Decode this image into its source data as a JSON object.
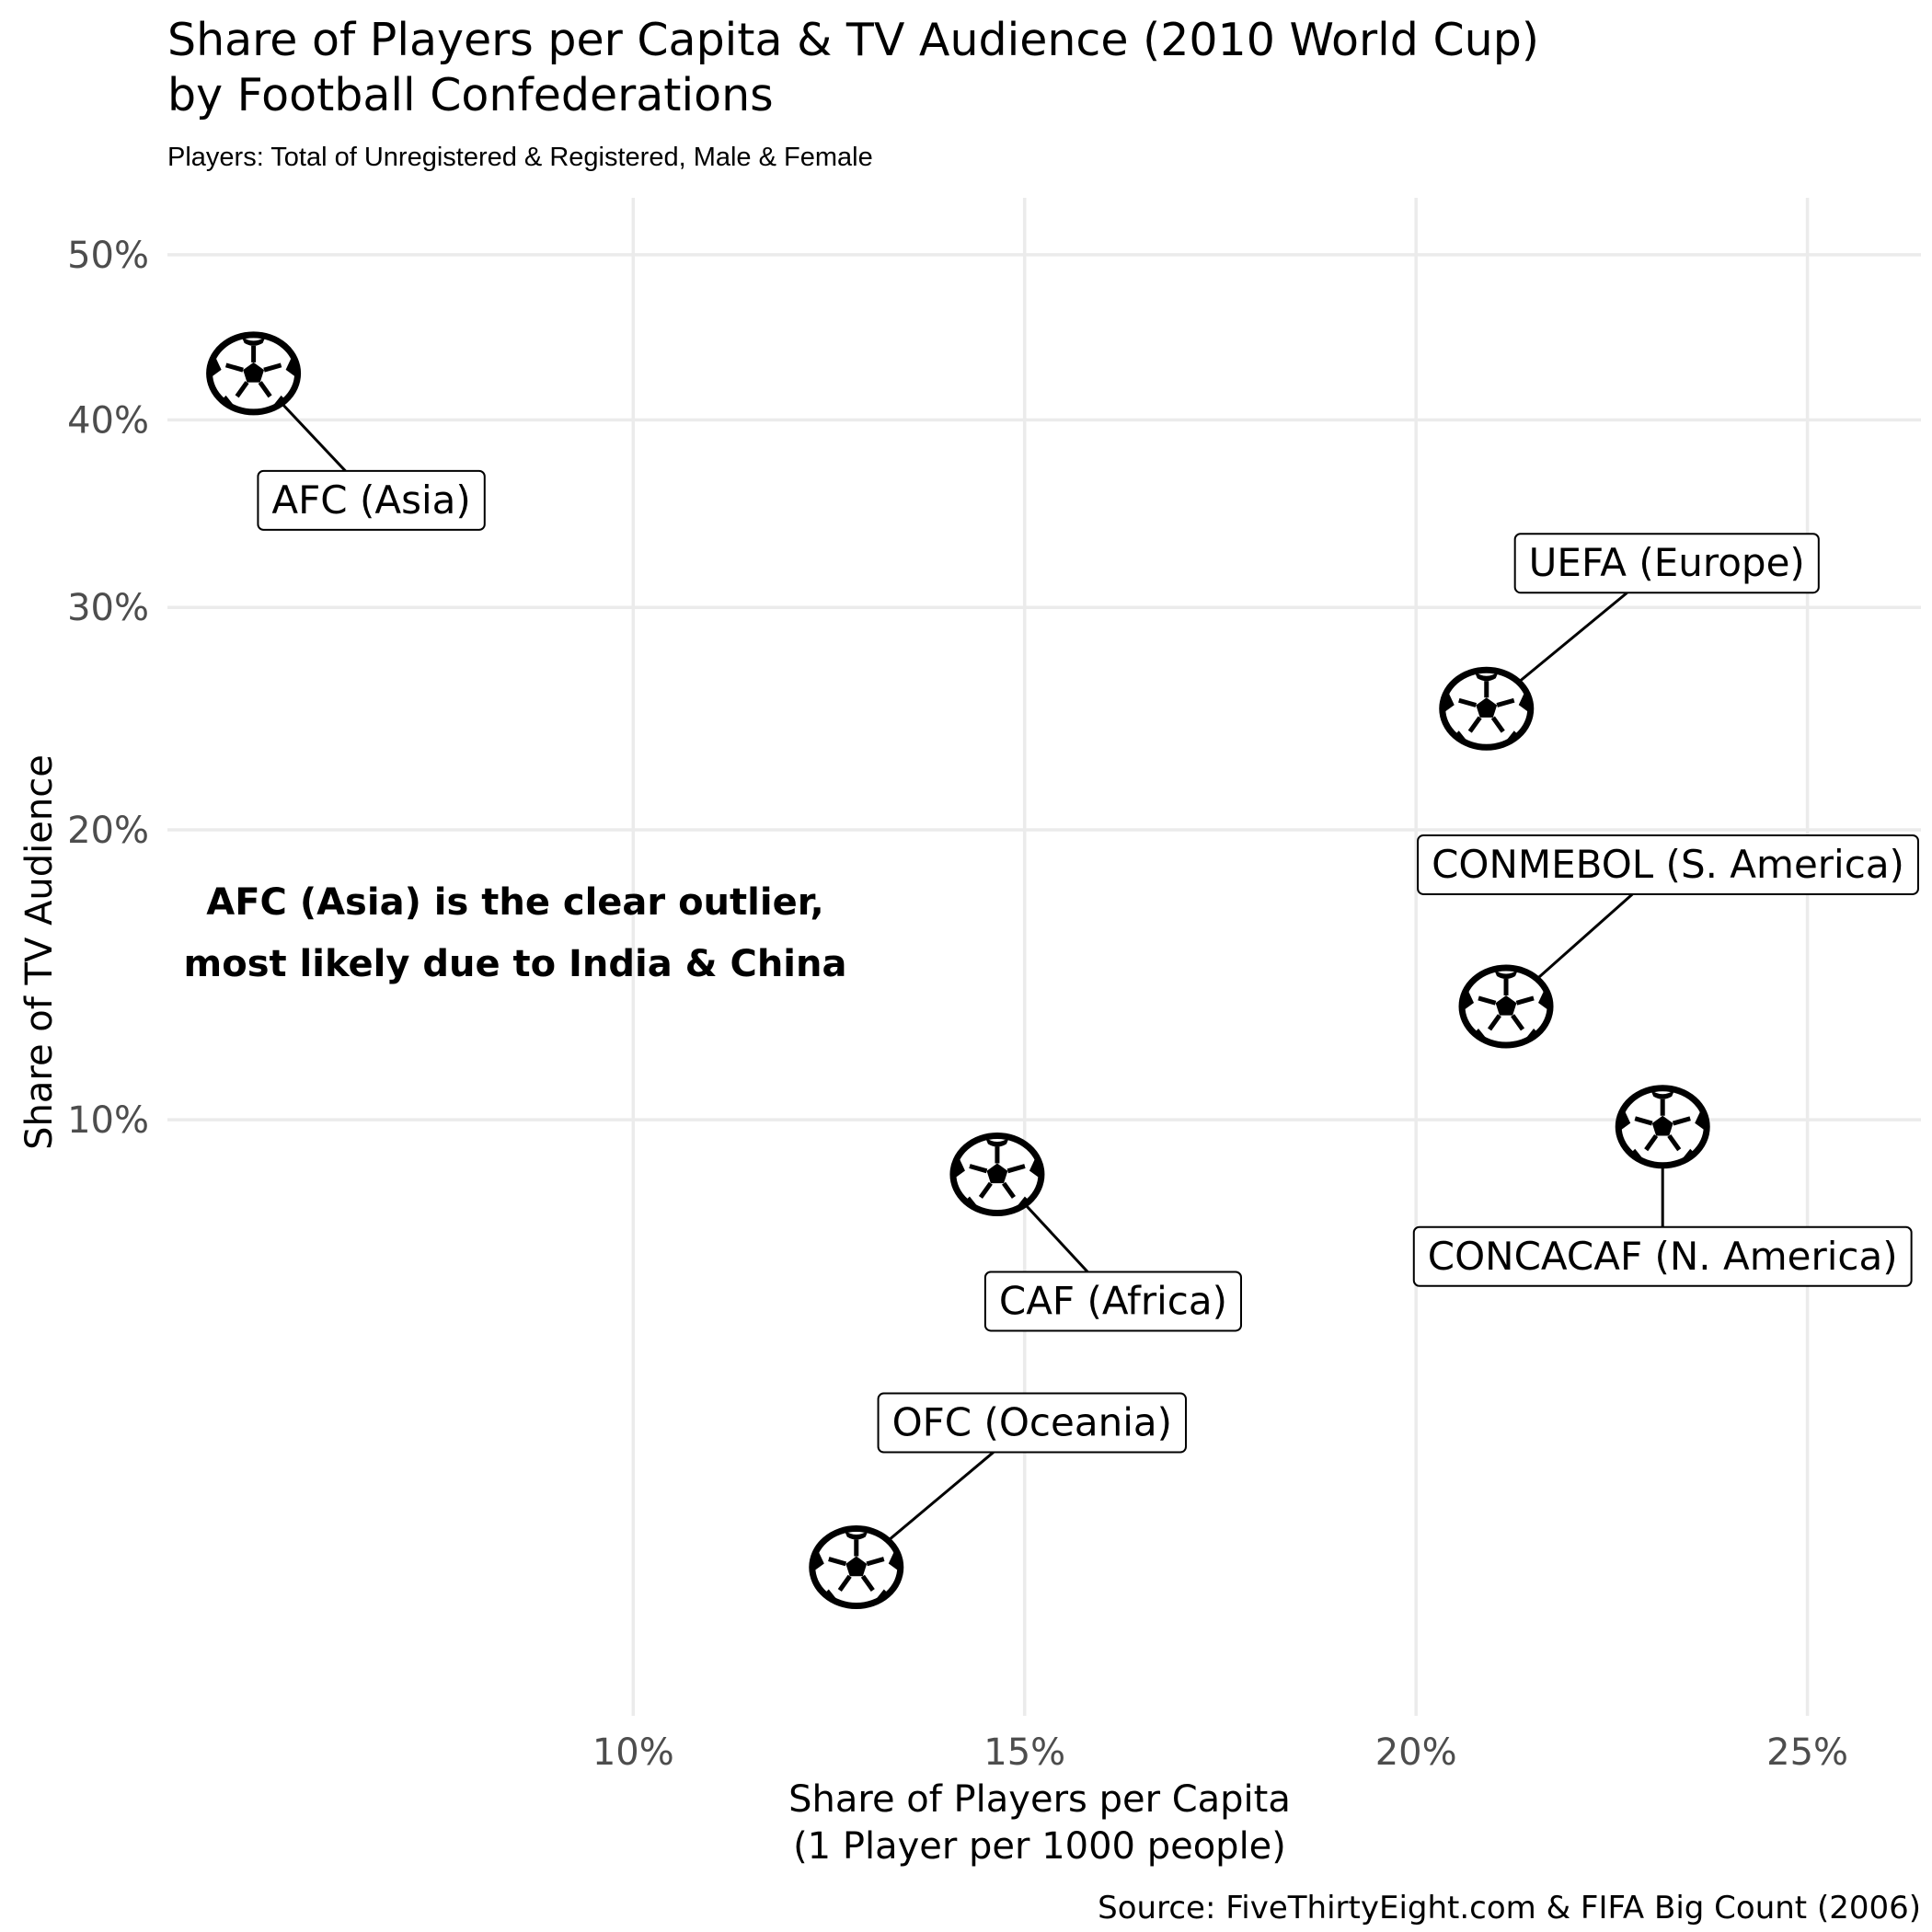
{
  "chart_data": {
    "type": "scatter",
    "title_lines": [
      "Share of Players per Capita & TV Audience (2010 World Cup)",
      "by Football Confederations"
    ],
    "subtitle": "Players: Total of Unregistered & Registered, Male & Female",
    "xlabel_lines": [
      "Share of Players per Capita",
      "(1 Player per 1000 people)"
    ],
    "ylabel": "Share of TV Audience",
    "caption": "Source: FiveThirtyEight.com & FIFA Big Count (2006)",
    "annotation_lines": [
      "AFC (Asia) is the clear outlier,",
      "most likely due to India & China"
    ],
    "y_scale": "sqrt",
    "x_ticks": [
      {
        "value": 0.1,
        "label": "10%"
      },
      {
        "value": 0.15,
        "label": "15%"
      },
      {
        "value": 0.2,
        "label": "20%"
      },
      {
        "value": 0.25,
        "label": "25%"
      }
    ],
    "y_ticks": [
      {
        "value": 0.1,
        "label": "10%"
      },
      {
        "value": 0.2,
        "label": "20%"
      },
      {
        "value": 0.3,
        "label": "30%"
      },
      {
        "value": 0.4,
        "label": "40%"
      },
      {
        "value": 0.5,
        "label": "50%"
      }
    ],
    "xlim": [
      0.0405,
      0.2645
    ],
    "ylim": [
      0.0022,
      0.537
    ],
    "marker": "soccer-ball",
    "points": [
      {
        "label": "AFC (Asia)",
        "x": 0.0515,
        "y": 0.427
      },
      {
        "label": "UEFA (Europe)",
        "x": 0.209,
        "y": 0.252
      },
      {
        "label": "CONMEBOL (S. America)",
        "x": 0.2115,
        "y": 0.135
      },
      {
        "label": "CONCACAF (N. America)",
        "x": 0.2315,
        "y": 0.098
      },
      {
        "label": "CAF (Africa)",
        "x": 0.1465,
        "y": 0.085
      },
      {
        "label": "OFC (Oceania)",
        "x": 0.1285,
        "y": 0.013
      }
    ]
  }
}
